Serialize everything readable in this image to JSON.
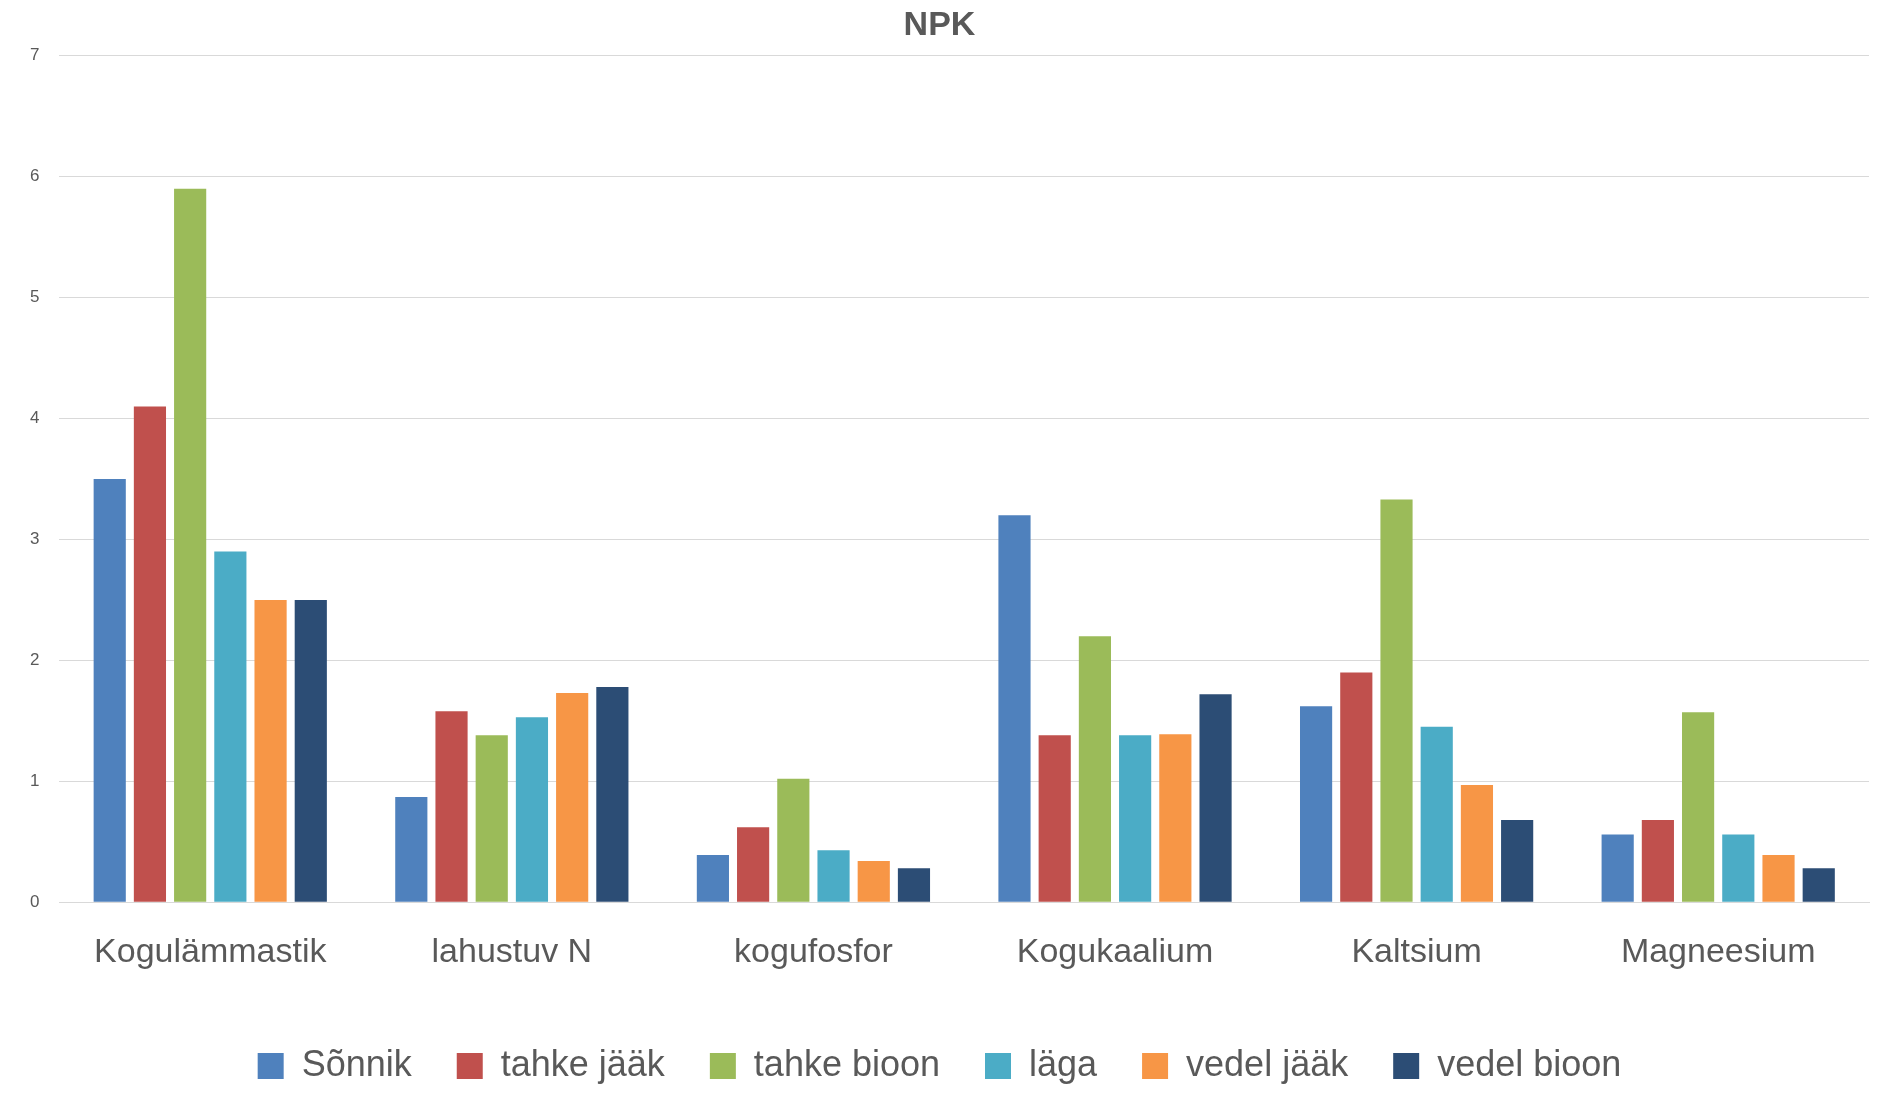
{
  "chart_data": {
    "type": "bar",
    "title": "NPK",
    "categories": [
      "Kogulämmastik",
      "lahustuv N",
      "kogufosfor",
      "Kogukaalium",
      "Kaltsium",
      "Magneesium"
    ],
    "series": [
      {
        "name": "Sõnnik",
        "color": "#4f81bd",
        "values": [
          3.5,
          0.87,
          0.39,
          3.2,
          1.62,
          0.56
        ]
      },
      {
        "name": "tahke jääk",
        "color": "#c0504d",
        "values": [
          4.1,
          1.58,
          0.62,
          1.38,
          1.9,
          0.68
        ]
      },
      {
        "name": "tahke bioon",
        "color": "#9bbb59",
        "values": [
          5.9,
          1.38,
          1.02,
          2.2,
          3.33,
          1.57
        ]
      },
      {
        "name": "läga",
        "color": "#4bacc6",
        "values": [
          2.9,
          1.53,
          0.43,
          1.38,
          1.45,
          0.56
        ]
      },
      {
        "name": "vedel jääk",
        "color": "#f79646",
        "values": [
          2.5,
          1.73,
          0.34,
          1.39,
          0.97,
          0.39
        ]
      },
      {
        "name": "vedel bioon",
        "color": "#2c4d75",
        "values": [
          2.5,
          1.78,
          0.28,
          1.72,
          0.68,
          0.28
        ]
      }
    ],
    "ylim": [
      0,
      7
    ],
    "yticks": [
      0,
      1,
      2,
      3,
      4,
      5,
      6,
      7
    ],
    "grid": "y",
    "legend": "bottom"
  }
}
